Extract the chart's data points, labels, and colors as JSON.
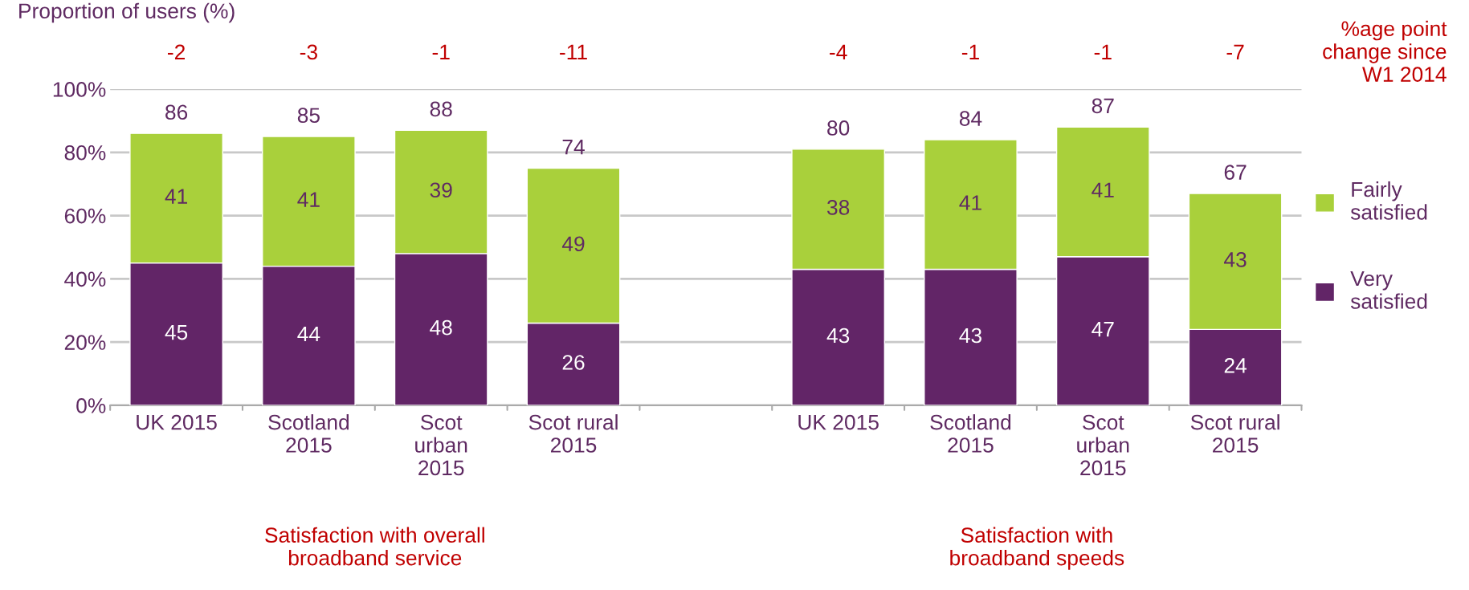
{
  "chart_data": {
    "type": "bar",
    "stacked": true,
    "ylabel": "Proportion of users (%)",
    "categories": [
      "UK 2015",
      "Scotland\n2015",
      "Scot\nurban\n2015",
      "Scot rural\n2015",
      null,
      "UK 2015",
      "Scotland\n2015",
      "Scot\nurban\n2015",
      "Scot rural\n2015"
    ],
    "series": [
      {
        "name": "Very\nsatisfied",
        "color": "#622567",
        "values": [
          45,
          44,
          48,
          26,
          null,
          43,
          43,
          47,
          24
        ]
      },
      {
        "name": "Fairly\nsatisfied",
        "color": "#a9d03b",
        "values": [
          41,
          41,
          39,
          49,
          null,
          38,
          41,
          41,
          43
        ]
      }
    ],
    "data_labels": true,
    "totals": [
      "86",
      "85",
      "88",
      "74",
      null,
      "80",
      "84",
      "87",
      "67"
    ],
    "ylim": [
      0,
      100
    ],
    "yticks": [
      {
        "value": 0,
        "label": "0%"
      },
      {
        "value": 20,
        "label": "20%"
      },
      {
        "value": 40,
        "label": "40%"
      },
      {
        "value": 60,
        "label": "60%"
      },
      {
        "value": 80,
        "label": "80%"
      },
      {
        "value": 100,
        "label": "100%"
      }
    ],
    "grid": "y",
    "legend": "right",
    "annotations": [
      "-2",
      "-3",
      "-1",
      "-11",
      "-4",
      "-1",
      "-1",
      "-7",
      "%age point\nchange since\nW1 2014",
      "Satisfaction with overall\nbroadband service",
      "Satisfaction with\nbroadband speeds"
    ]
  }
}
